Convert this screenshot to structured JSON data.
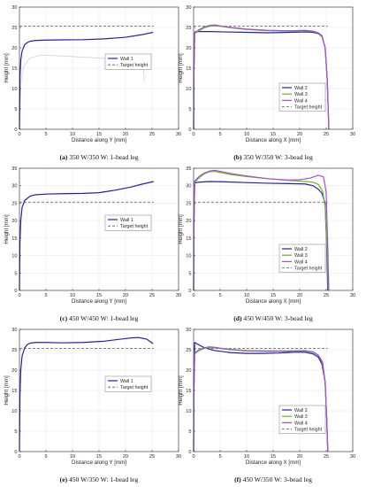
{
  "figure": {
    "style": {
      "axis_color": "#262626",
      "grid_color": "#e6e6e6",
      "target_color": "#555555"
    }
  },
  "chart_data": [
    {
      "id": "a",
      "type": "line",
      "caption_label": "(a)",
      "caption_text": "350 W/350 W: 1-bead leg",
      "xlabel": "Distance along Y [mm]",
      "ylabel": "Height [mm]",
      "xlim": [
        0,
        30
      ],
      "ylim": [
        0,
        30
      ],
      "xticks": [
        0,
        5,
        10,
        15,
        20,
        25,
        30
      ],
      "yticks": [
        0,
        5,
        10,
        15,
        20,
        25,
        30
      ],
      "grid": true,
      "legend_position": "right-middle",
      "target_height": 25.3,
      "target_label": "Target height",
      "faint_outline": [
        [
          0.0,
          0
        ],
        [
          0.3,
          12
        ],
        [
          0.8,
          15.5
        ],
        [
          2,
          17.5
        ],
        [
          4,
          18.2
        ],
        [
          8,
          18.0
        ],
        [
          12,
          17.7
        ],
        [
          16,
          17.4
        ],
        [
          20,
          17.2
        ],
        [
          22,
          17.0
        ],
        [
          23.2,
          16.2
        ],
        [
          23.6,
          12
        ]
      ],
      "series": [
        {
          "name": "Wall 1",
          "color": "#1f1fb4",
          "x": [
            0.0,
            0.1,
            0.25,
            0.5,
            1.0,
            1.5,
            2.0,
            3,
            5,
            8,
            12,
            16,
            20,
            23,
            25.2
          ],
          "y": [
            0,
            13,
            17,
            19.2,
            20.8,
            21.3,
            21.6,
            21.8,
            21.9,
            21.95,
            22.0,
            22.2,
            22.6,
            23.2,
            23.8
          ]
        }
      ]
    },
    {
      "id": "b",
      "type": "line",
      "caption_label": "(b)",
      "caption_text": "350 W/350 W: 3-bead leg",
      "xlabel": "Distance along X [mm]",
      "ylabel": "Height [mm]",
      "xlim": [
        0,
        30
      ],
      "ylim": [
        0,
        30
      ],
      "xticks": [
        0,
        5,
        10,
        15,
        20,
        25,
        30
      ],
      "yticks": [
        0,
        5,
        10,
        15,
        20,
        25,
        30
      ],
      "grid": true,
      "legend_position": "right-bottom",
      "target_height": 25.3,
      "target_label": "Target height",
      "series": [
        {
          "name": "Wall 2",
          "color": "#1f1fb4",
          "x": [
            0.0,
            0.05,
            0.2,
            1,
            3,
            6,
            10,
            14,
            18,
            21,
            22.5,
            23.5,
            24.2,
            24.8,
            25.2,
            25.4,
            25.5
          ],
          "y": [
            0,
            14,
            23.9,
            24.0,
            24.0,
            23.9,
            23.8,
            23.7,
            23.8,
            23.9,
            23.8,
            23.5,
            22.8,
            20,
            12,
            4,
            0
          ]
        },
        {
          "name": "Wall 3",
          "color": "#66b81e",
          "x": [
            0.0,
            0.05,
            0.2,
            1,
            2,
            3,
            4,
            5,
            7,
            10,
            14,
            18,
            21,
            22.5,
            23.5,
            24.2,
            24.8,
            25.2,
            25.4,
            25.5
          ],
          "y": [
            0,
            14,
            23.5,
            24.2,
            24.9,
            25.3,
            25.4,
            25.3,
            24.9,
            24.5,
            24.2,
            24.1,
            24.2,
            24.0,
            23.6,
            22.9,
            20,
            12,
            4,
            0
          ]
        },
        {
          "name": "Wall 4",
          "color": "#a64ed6",
          "x": [
            0.0,
            0.05,
            0.2,
            1,
            2,
            3,
            4,
            5,
            7,
            10,
            14,
            18,
            21,
            22.5,
            23.5,
            24.2,
            24.8,
            25.2,
            25.4,
            25.5
          ],
          "y": [
            0,
            14,
            23.7,
            24.4,
            25.1,
            25.5,
            25.6,
            25.4,
            25.0,
            24.6,
            24.3,
            24.2,
            24.3,
            24.1,
            23.7,
            23.0,
            20,
            12,
            4,
            0
          ]
        }
      ]
    },
    {
      "id": "c",
      "type": "line",
      "caption_label": "(c)",
      "caption_text": "450 W/450 W: 1-bead leg",
      "xlabel": "Distance along Y [mm]",
      "ylabel": "Height [mm]",
      "xlim": [
        0,
        30
      ],
      "ylim": [
        0,
        35
      ],
      "xticks": [
        0,
        5,
        10,
        15,
        20,
        25,
        30
      ],
      "yticks": [
        0,
        5,
        10,
        15,
        20,
        25,
        30,
        35
      ],
      "grid": true,
      "legend_position": "right-middle",
      "target_height": 25.3,
      "target_label": "Target height",
      "series": [
        {
          "name": "Wall 1",
          "color": "#1f1fb4",
          "x": [
            0.0,
            0.1,
            0.25,
            0.5,
            1.0,
            2.0,
            3,
            5,
            8,
            12,
            15,
            18,
            21,
            23,
            25.3
          ],
          "y": [
            0,
            14,
            20,
            23.8,
            25.8,
            27.0,
            27.4,
            27.6,
            27.7,
            27.8,
            28.0,
            28.7,
            29.6,
            30.4,
            31.2
          ]
        }
      ]
    },
    {
      "id": "d",
      "type": "line",
      "caption_label": "(d)",
      "caption_text": "450 W/450 W: 3-bead leg",
      "xlabel": "Distance along X [mm]",
      "ylabel": "Height [mm]",
      "xlim": [
        0,
        30
      ],
      "ylim": [
        0,
        35
      ],
      "xticks": [
        0,
        5,
        10,
        15,
        20,
        25,
        30
      ],
      "yticks": [
        0,
        5,
        10,
        15,
        20,
        25,
        30,
        35
      ],
      "grid": true,
      "legend_position": "right-bottom",
      "target_height": 25.3,
      "target_label": "Target height",
      "series": [
        {
          "name": "Wall 2",
          "color": "#1f1fb4",
          "x": [
            0.0,
            0.05,
            0.2,
            1,
            3,
            6,
            10,
            14,
            18,
            21,
            22.5,
            23.5,
            24.2,
            24.8,
            25.1,
            25.3
          ],
          "y": [
            0,
            18,
            30.8,
            31.0,
            31.2,
            31.1,
            30.9,
            30.7,
            30.6,
            30.5,
            30.0,
            29.0,
            27.8,
            25.0,
            12,
            0
          ]
        },
        {
          "name": "Wall 3",
          "color": "#66b81e",
          "x": [
            0.0,
            0.05,
            0.2,
            1,
            2,
            3,
            4,
            5,
            7,
            10,
            14,
            18,
            21,
            22.5,
            23.5,
            24.3,
            24.8,
            25.2,
            25.4
          ],
          "y": [
            0,
            18,
            31.0,
            32.2,
            33.4,
            34.0,
            34.1,
            33.8,
            33.2,
            32.6,
            32.0,
            31.5,
            31.2,
            31.0,
            30.4,
            28.5,
            24,
            10,
            0
          ]
        },
        {
          "name": "Wall 4",
          "color": "#a64ed6",
          "x": [
            0.0,
            0.05,
            0.2,
            1,
            2,
            3,
            4,
            5,
            7,
            10,
            14,
            18,
            20,
            22,
            23.5,
            24.5,
            25.0,
            25.3,
            25.5
          ],
          "y": [
            0,
            18,
            31.3,
            32.6,
            33.6,
            34.2,
            34.4,
            34.1,
            33.5,
            32.8,
            32.0,
            31.6,
            31.7,
            32.2,
            33.0,
            32.5,
            28,
            12,
            0
          ]
        }
      ]
    },
    {
      "id": "e",
      "type": "line",
      "caption_label": "(e)",
      "caption_text": "450 W/350 W: 1-bead leg",
      "xlabel": "Distance along Y [mm]",
      "ylabel": "Height [mm]",
      "xlim": [
        0,
        30
      ],
      "ylim": [
        0,
        30
      ],
      "xticks": [
        0,
        5,
        10,
        15,
        20,
        25,
        30
      ],
      "yticks": [
        0,
        5,
        10,
        15,
        20,
        25,
        30
      ],
      "grid": true,
      "legend_position": "right-middle",
      "target_height": 25.3,
      "target_label": "Target height",
      "series": [
        {
          "name": "Wall 1",
          "color": "#1f1fb4",
          "x": [
            0.0,
            0.1,
            0.25,
            0.5,
            1.0,
            1.5,
            2.0,
            3,
            5,
            8,
            12,
            16,
            19,
            21,
            22.5,
            24,
            25.2
          ],
          "y": [
            0,
            14,
            20,
            23.5,
            25.5,
            26.3,
            26.6,
            26.8,
            26.8,
            26.7,
            26.8,
            27.1,
            27.6,
            27.9,
            28.0,
            27.6,
            26.5
          ]
        }
      ]
    },
    {
      "id": "f",
      "type": "line",
      "caption_label": "(f)",
      "caption_text": "450 W/350 W: 3-bead leg",
      "xlabel": "Distance along X [mm]",
      "ylabel": "Height [mm]",
      "xlim": [
        0,
        30
      ],
      "ylim": [
        0,
        30
      ],
      "xticks": [
        0,
        5,
        10,
        15,
        20,
        25,
        30
      ],
      "yticks": [
        0,
        5,
        10,
        15,
        20,
        25,
        30
      ],
      "grid": true,
      "legend_position": "right-bottom",
      "target_height": 25.3,
      "target_label": "Target height",
      "series": [
        {
          "name": "Wall 2",
          "color": "#1f1fb4",
          "x": [
            0.0,
            0.05,
            0.2,
            1,
            2,
            4,
            7,
            10,
            13,
            16,
            19,
            21,
            22.5,
            23.5,
            24.2,
            24.8,
            25.1,
            25.3
          ],
          "y": [
            0,
            18,
            26.8,
            26.2,
            25.5,
            24.8,
            24.3,
            24.1,
            24.1,
            24.2,
            24.4,
            24.4,
            24.0,
            23.2,
            21.5,
            17,
            8,
            0
          ]
        },
        {
          "name": "Wall 3",
          "color": "#66b81e",
          "x": [
            0.0,
            0.05,
            0.2,
            1,
            2,
            3,
            4,
            5,
            7,
            10,
            14,
            18,
            21,
            22.5,
            23.5,
            24.3,
            24.8,
            25.1,
            25.3
          ],
          "y": [
            0,
            14,
            24.0,
            24.8,
            25.3,
            25.5,
            25.5,
            25.3,
            25.0,
            24.7,
            24.6,
            24.6,
            24.7,
            24.4,
            23.6,
            21.8,
            17,
            8,
            0
          ]
        },
        {
          "name": "Wall 4",
          "color": "#a64ed6",
          "x": [
            0.0,
            0.05,
            0.2,
            1,
            2,
            3,
            4,
            5,
            7,
            10,
            14,
            18,
            21,
            22.5,
            23.5,
            24.3,
            24.8,
            25.1,
            25.3
          ],
          "y": [
            0,
            14,
            24.2,
            25.0,
            25.5,
            25.7,
            25.6,
            25.4,
            25.1,
            24.8,
            24.7,
            24.7,
            24.8,
            24.5,
            23.7,
            22.0,
            17,
            8,
            0
          ]
        }
      ]
    }
  ]
}
